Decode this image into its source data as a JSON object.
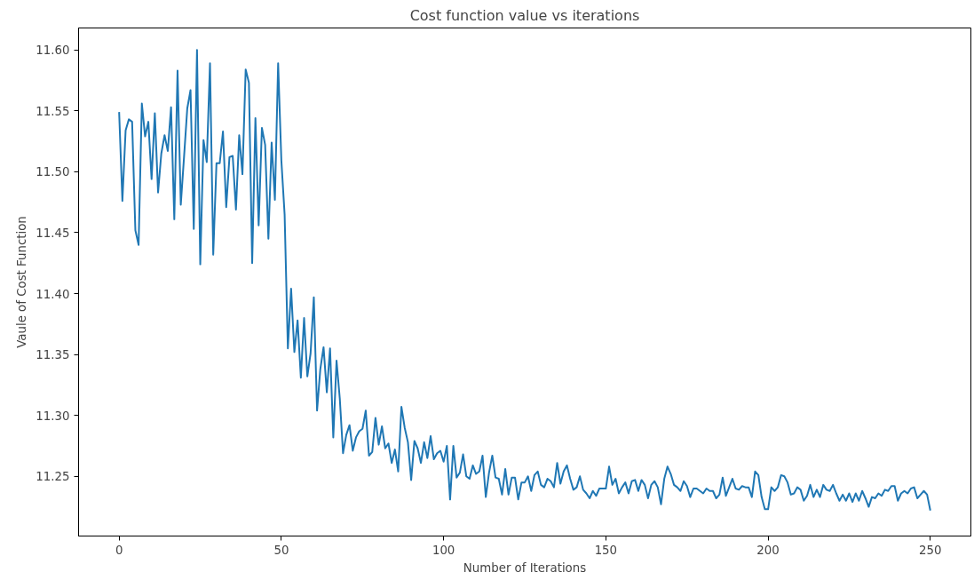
{
  "chart_data": {
    "type": "line",
    "title": "Cost function value vs iterations",
    "xlabel": "Number of Iterations",
    "ylabel": "Vaule of Cost Function",
    "x": [
      0,
      1,
      2,
      3,
      4,
      5,
      6,
      7,
      8,
      9,
      10,
      11,
      12,
      13,
      14,
      15,
      16,
      17,
      18,
      19,
      20,
      21,
      22,
      23,
      24,
      25,
      26,
      27,
      28,
      29,
      30,
      31,
      32,
      33,
      34,
      35,
      36,
      37,
      38,
      39,
      40,
      41,
      42,
      43,
      44,
      45,
      46,
      47,
      48,
      49,
      50,
      51,
      52,
      53,
      54,
      55,
      56,
      57,
      58,
      59,
      60,
      61,
      62,
      63,
      64,
      65,
      66,
      67,
      68,
      69,
      70,
      71,
      72,
      73,
      74,
      75,
      76,
      77,
      78,
      79,
      80,
      81,
      82,
      83,
      84,
      85,
      86,
      87,
      88,
      89,
      90,
      91,
      92,
      93,
      94,
      95,
      96,
      97,
      98,
      99,
      100,
      101,
      102,
      103,
      104,
      105,
      106,
      107,
      108,
      109,
      110,
      111,
      112,
      113,
      114,
      115,
      116,
      117,
      118,
      119,
      120,
      121,
      122,
      123,
      124,
      125,
      126,
      127,
      128,
      129,
      130,
      131,
      132,
      133,
      134,
      135,
      136,
      137,
      138,
      139,
      140,
      141,
      142,
      143,
      144,
      145,
      146,
      147,
      148,
      149,
      150,
      151,
      152,
      153,
      154,
      155,
      156,
      157,
      158,
      159,
      160,
      161,
      162,
      163,
      164,
      165,
      166,
      167,
      168,
      169,
      170,
      171,
      172,
      173,
      174,
      175,
      176,
      177,
      178,
      179,
      180,
      181,
      182,
      183,
      184,
      185,
      186,
      187,
      188,
      189,
      190,
      191,
      192,
      193,
      194,
      195,
      196,
      197,
      198,
      199,
      200,
      201,
      202,
      203,
      204,
      205,
      206,
      207,
      208,
      209,
      210,
      211,
      212,
      213,
      214,
      215,
      216,
      217,
      218,
      219,
      220,
      221,
      222,
      223,
      224,
      225,
      226,
      227,
      228,
      229,
      230,
      231,
      232,
      233,
      234,
      235,
      236,
      237,
      238,
      239,
      240,
      241,
      242,
      243,
      244,
      245,
      246,
      247,
      248,
      249,
      250
    ],
    "series": [
      {
        "color": "#1f77b4",
        "values": [
          11.549,
          11.476,
          11.534,
          11.543,
          11.541,
          11.452,
          11.44,
          11.556,
          11.529,
          11.541,
          11.494,
          11.548,
          11.483,
          11.515,
          11.53,
          11.517,
          11.553,
          11.461,
          11.583,
          11.473,
          11.512,
          11.552,
          11.567,
          11.453,
          11.6,
          11.424,
          11.526,
          11.508,
          11.589,
          11.432,
          11.507,
          11.507,
          11.533,
          11.471,
          11.512,
          11.513,
          11.469,
          11.53,
          11.498,
          11.584,
          11.573,
          11.425,
          11.544,
          11.456,
          11.536,
          11.522,
          11.445,
          11.524,
          11.477,
          11.589,
          11.509,
          11.465,
          11.355,
          11.404,
          11.352,
          11.378,
          11.331,
          11.38,
          11.332,
          11.351,
          11.397,
          11.304,
          11.338,
          11.356,
          11.319,
          11.355,
          11.282,
          11.345,
          11.314,
          11.269,
          11.284,
          11.292,
          11.271,
          11.282,
          11.287,
          11.289,
          11.304,
          11.267,
          11.27,
          11.298,
          11.276,
          11.291,
          11.273,
          11.277,
          11.261,
          11.272,
          11.254,
          11.307,
          11.29,
          11.278,
          11.247,
          11.279,
          11.273,
          11.261,
          11.278,
          11.265,
          11.283,
          11.264,
          11.269,
          11.271,
          11.262,
          11.275,
          11.231,
          11.275,
          11.249,
          11.253,
          11.268,
          11.25,
          11.248,
          11.259,
          11.252,
          11.254,
          11.267,
          11.233,
          11.253,
          11.267,
          11.249,
          11.248,
          11.235,
          11.256,
          11.235,
          11.249,
          11.249,
          11.231,
          11.245,
          11.245,
          11.25,
          11.238,
          11.251,
          11.254,
          11.243,
          11.241,
          11.248,
          11.246,
          11.241,
          11.261,
          11.244,
          11.254,
          11.259,
          11.248,
          11.239,
          11.241,
          11.25,
          11.239,
          11.236,
          11.232,
          11.238,
          11.234,
          11.24,
          11.24,
          11.24,
          11.258,
          11.243,
          11.248,
          11.236,
          11.241,
          11.245,
          11.236,
          11.246,
          11.247,
          11.238,
          11.247,
          11.243,
          11.232,
          11.243,
          11.246,
          11.241,
          11.227,
          11.248,
          11.258,
          11.252,
          11.243,
          11.241,
          11.238,
          11.246,
          11.242,
          11.233,
          11.24,
          11.24,
          11.238,
          11.236,
          11.24,
          11.238,
          11.238,
          11.232,
          11.235,
          11.249,
          11.234,
          11.241,
          11.248,
          11.24,
          11.239,
          11.242,
          11.241,
          11.241,
          11.233,
          11.254,
          11.251,
          11.233,
          11.223,
          11.223,
          11.241,
          11.238,
          11.241,
          11.251,
          11.25,
          11.245,
          11.235,
          11.236,
          11.241,
          11.239,
          11.23,
          11.234,
          11.243,
          11.233,
          11.239,
          11.233,
          11.243,
          11.239,
          11.238,
          11.243,
          11.236,
          11.23,
          11.235,
          11.23,
          11.236,
          11.229,
          11.236,
          11.23,
          11.238,
          11.232,
          11.225,
          11.233,
          11.232,
          11.236,
          11.234,
          11.239,
          11.238,
          11.242,
          11.242,
          11.23,
          11.236,
          11.238,
          11.236,
          11.24,
          11.241,
          11.232,
          11.235,
          11.238,
          11.235,
          11.222
        ]
      }
    ],
    "xlim": [
      -12.5,
      262.5
    ],
    "ylim": [
      11.201,
      11.618
    ],
    "xticks": [
      0,
      50,
      100,
      150,
      200,
      250
    ],
    "yticks": [
      11.25,
      {
        "value": 11.3,
        "label": "11.30"
      },
      11.35,
      {
        "value": 11.4,
        "label": "11.40"
      },
      11.45,
      {
        "value": 11.5,
        "label": "11.50"
      },
      11.55,
      {
        "value": 11.6,
        "label": "11.60"
      }
    ],
    "grid": false,
    "marker": "none",
    "line_style": "solid"
  }
}
